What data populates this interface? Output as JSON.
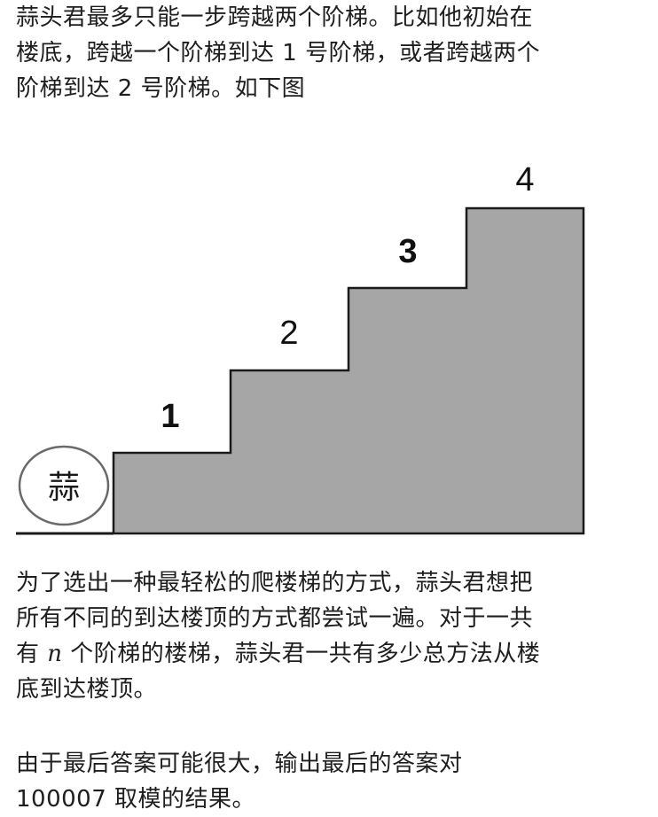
{
  "intro": {
    "lines": [
      "蒜头君最多只能一步跨越两个阶梯。比如他初始在",
      "楼底，跨越一个阶梯到达 1 号阶梯，或者跨越两个",
      "阶梯到达 2 号阶梯。如下图"
    ]
  },
  "figure": {
    "start_label": "蒜",
    "step_labels": [
      "1",
      "2",
      "3",
      "4"
    ],
    "fill_color": "#a6a6a6",
    "stroke_color": "#1a1a1a"
  },
  "body": {
    "line1": "为了选出一种最轻松的爬楼梯的方式，蒜头君想把",
    "line2": "所有不同的到达楼顶的方式都尝试一遍。对于一共",
    "line3_pre": "有 ",
    "line3_var": "n",
    "line3_post": " 个阶梯的楼梯，蒜头君一共有多少总方法从楼",
    "line4": "底到达楼顶。"
  },
  "footer": {
    "line1": "由于最后答案可能很大，输出最后的答案对",
    "line2": "100007 取模的结果。"
  }
}
